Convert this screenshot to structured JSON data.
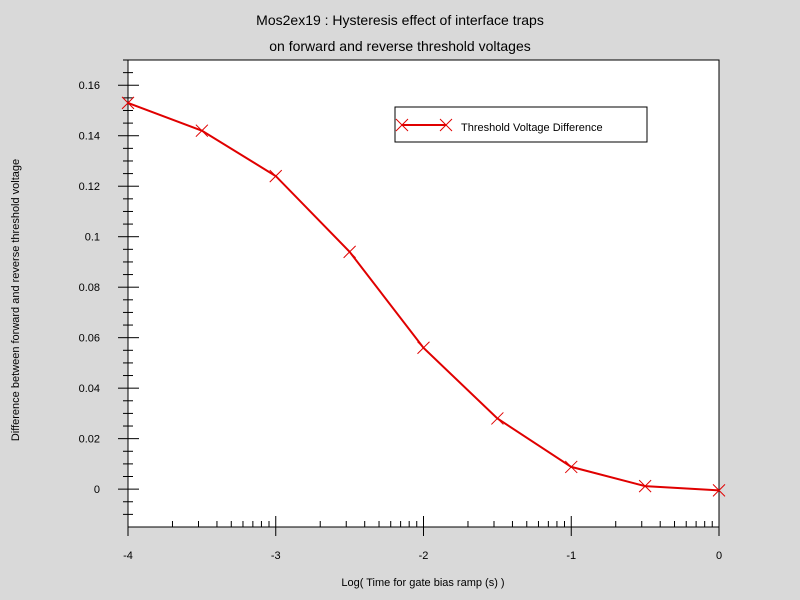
{
  "chart_data": {
    "type": "line",
    "title": "Mos2ex19 : Hysteresis effect of interface traps",
    "subtitle": "on forward and reverse threshold voltages",
    "xlabel": "Log( Time for gate bias ramp (s) )",
    "ylabel": "Difference between forward and reverse threshold voltage",
    "xlim": [
      -4,
      0
    ],
    "ylim": [
      -0.015,
      0.17
    ],
    "x_ticks": [
      -4,
      -3,
      -2,
      -1,
      0
    ],
    "x_tick_labels": [
      "-4",
      "-3",
      "-2",
      "-1",
      "0"
    ],
    "y_ticks": [
      0,
      0.02,
      0.04,
      0.06,
      0.08,
      0.1,
      0.12,
      0.14,
      0.16
    ],
    "y_tick_labels": [
      "0",
      "0.02",
      "0.04",
      "0.06",
      "0.08",
      "0.1",
      "0.12",
      "0.14",
      "0.16"
    ],
    "grid": false,
    "legend_position": "top-right",
    "series": [
      {
        "name": "Threshold Voltage Difference",
        "color": "#e00000",
        "marker": "x",
        "x": [
          -4,
          -3.5,
          -3,
          -2.5,
          -2,
          -1.5,
          -1,
          -0.5,
          0
        ],
        "y": [
          0.153,
          0.142,
          0.124,
          0.094,
          0.056,
          0.028,
          0.0088,
          0.0012,
          -0.0005
        ]
      }
    ]
  }
}
